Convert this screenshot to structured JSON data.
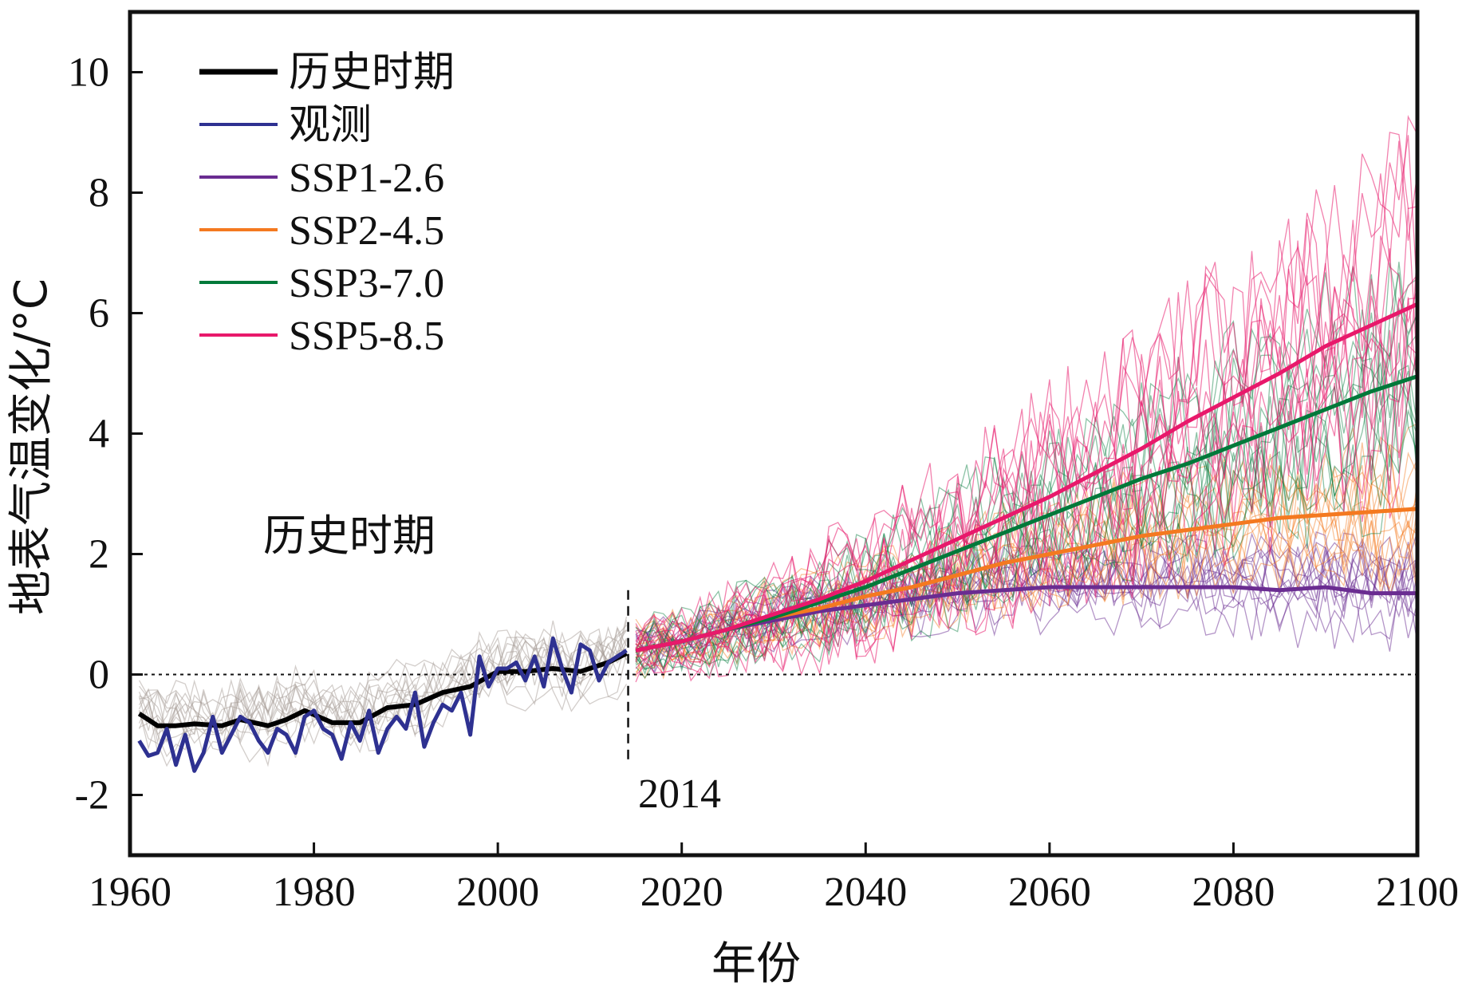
{
  "chart_data": {
    "type": "line",
    "title": "",
    "xlabel": "年份",
    "ylabel": "地表气温变化/°C",
    "xlim": [
      1960,
      2100
    ],
    "ylim": [
      -3,
      11
    ],
    "x_ticks": [
      1960,
      1980,
      2000,
      2020,
      2040,
      2060,
      2080,
      2100
    ],
    "y_ticks": [
      -2,
      0,
      2,
      4,
      6,
      8,
      10
    ],
    "grid": false,
    "legend_position": "top-left",
    "zero_line": 0,
    "split_year": 2014,
    "annotations": [
      {
        "text": "历史时期",
        "x": 1978,
        "y": 2.3
      },
      {
        "text": "2014",
        "x": 2021,
        "y": -2.0
      }
    ],
    "colors": {
      "historical": "#000000",
      "observed": "#2e3191",
      "ssp126": "#6a2c91",
      "ssp245": "#f47920",
      "ssp370": "#00793a",
      "ssp585": "#e8196b",
      "ensemble_hist": "#a89e98"
    },
    "legend": [
      {
        "key": "historical",
        "label": "历史时期"
      },
      {
        "key": "observed",
        "label": "观测"
      },
      {
        "key": "ssp126",
        "label": "SSP1-2.6"
      },
      {
        "key": "ssp245",
        "label": "SSP2-4.5"
      },
      {
        "key": "ssp370",
        "label": "SSP3-7.0"
      },
      {
        "key": "ssp585",
        "label": "SSP5-8.5"
      }
    ],
    "series": [
      {
        "key": "historical",
        "x": [
          1961,
          1963,
          1965,
          1967,
          1970,
          1972,
          1975,
          1977,
          1979,
          1982,
          1985,
          1988,
          1991,
          1994,
          1997,
          2000,
          2003,
          2006,
          2009,
          2012,
          2014
        ],
        "values": [
          -0.65,
          -0.85,
          -0.85,
          -0.82,
          -0.85,
          -0.75,
          -0.85,
          -0.75,
          -0.6,
          -0.8,
          -0.8,
          -0.55,
          -0.5,
          -0.3,
          -0.2,
          0.05,
          0.05,
          0.1,
          0.05,
          0.2,
          0.35
        ]
      },
      {
        "key": "observed",
        "x": [
          1961,
          1962,
          1963,
          1964,
          1965,
          1966,
          1967,
          1968,
          1969,
          1970,
          1971,
          1972,
          1973,
          1974,
          1975,
          1976,
          1977,
          1978,
          1979,
          1980,
          1981,
          1982,
          1983,
          1984,
          1985,
          1986,
          1987,
          1988,
          1989,
          1990,
          1991,
          1992,
          1993,
          1994,
          1995,
          1996,
          1997,
          1998,
          1999,
          2000,
          2001,
          2002,
          2003,
          2004,
          2005,
          2006,
          2007,
          2008,
          2009,
          2010,
          2011,
          2012,
          2013,
          2014
        ],
        "values": [
          -1.1,
          -1.35,
          -1.3,
          -0.9,
          -1.5,
          -1.0,
          -1.6,
          -1.3,
          -0.7,
          -1.3,
          -1.0,
          -0.7,
          -0.8,
          -1.1,
          -1.3,
          -0.9,
          -1.0,
          -1.3,
          -0.7,
          -0.6,
          -0.9,
          -1.0,
          -1.4,
          -0.8,
          -1.1,
          -0.6,
          -1.3,
          -0.9,
          -0.7,
          -0.9,
          -0.3,
          -1.2,
          -0.8,
          -0.5,
          -0.6,
          -0.3,
          -1.0,
          0.3,
          -0.2,
          0.1,
          0.1,
          0.2,
          -0.1,
          0.3,
          -0.2,
          0.6,
          0.1,
          -0.3,
          0.5,
          0.4,
          -0.1,
          0.2,
          0.3,
          0.4
        ]
      },
      {
        "key": "ssp126",
        "x": [
          2015,
          2020,
          2025,
          2030,
          2035,
          2040,
          2045,
          2050,
          2055,
          2060,
          2065,
          2070,
          2075,
          2080,
          2085,
          2090,
          2095,
          2100
        ],
        "values": [
          0.4,
          0.55,
          0.75,
          0.9,
          1.05,
          1.15,
          1.25,
          1.35,
          1.4,
          1.45,
          1.45,
          1.45,
          1.45,
          1.45,
          1.4,
          1.45,
          1.35,
          1.35
        ]
      },
      {
        "key": "ssp245",
        "x": [
          2015,
          2020,
          2025,
          2030,
          2035,
          2040,
          2045,
          2050,
          2055,
          2060,
          2065,
          2070,
          2075,
          2080,
          2085,
          2090,
          2095,
          2100
        ],
        "values": [
          0.4,
          0.55,
          0.75,
          0.95,
          1.1,
          1.3,
          1.45,
          1.65,
          1.85,
          2.0,
          2.15,
          2.3,
          2.4,
          2.5,
          2.6,
          2.65,
          2.7,
          2.75
        ]
      },
      {
        "key": "ssp370",
        "x": [
          2015,
          2020,
          2025,
          2030,
          2035,
          2040,
          2045,
          2050,
          2055,
          2060,
          2065,
          2070,
          2075,
          2080,
          2085,
          2090,
          2095,
          2100
        ],
        "values": [
          0.4,
          0.55,
          0.75,
          0.95,
          1.2,
          1.45,
          1.75,
          2.05,
          2.35,
          2.65,
          2.95,
          3.25,
          3.5,
          3.8,
          4.1,
          4.4,
          4.7,
          4.95
        ]
      },
      {
        "key": "ssp585",
        "x": [
          2015,
          2020,
          2025,
          2030,
          2035,
          2040,
          2045,
          2050,
          2055,
          2060,
          2065,
          2070,
          2075,
          2080,
          2085,
          2090,
          2095,
          2100
        ],
        "values": [
          0.4,
          0.55,
          0.75,
          1.0,
          1.25,
          1.55,
          1.9,
          2.25,
          2.6,
          2.95,
          3.35,
          3.75,
          4.2,
          4.6,
          5.0,
          5.45,
          5.8,
          6.15
        ]
      }
    ]
  }
}
